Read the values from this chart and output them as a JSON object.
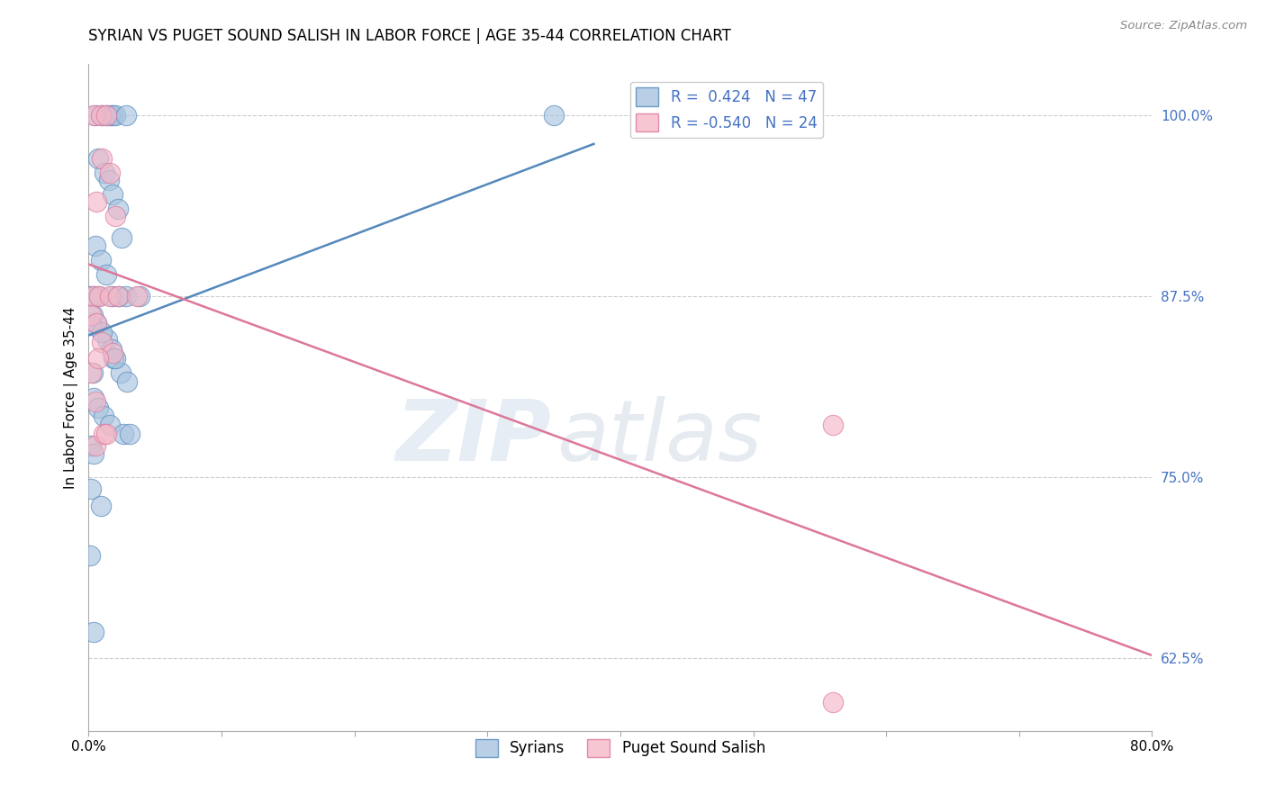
{
  "title": "SYRIAN VS PUGET SOUND SALISH IN LABOR FORCE | AGE 35-44 CORRELATION CHART",
  "source": "Source: ZipAtlas.com",
  "ylabel": "In Labor Force | Age 35-44",
  "watermark": "ZIPatlas",
  "xlim": [
    0.0,
    0.8
  ],
  "ylim": [
    0.575,
    1.035
  ],
  "xticks": [
    0.0,
    0.1,
    0.2,
    0.3,
    0.4,
    0.5,
    0.6,
    0.7,
    0.8
  ],
  "xticklabels": [
    "0.0%",
    "",
    "",
    "",
    "",
    "",
    "",
    "",
    "80.0%"
  ],
  "yticks": [
    0.625,
    0.75,
    0.875,
    1.0
  ],
  "yticklabels": [
    "62.5%",
    "75.0%",
    "87.5%",
    "100.0%"
  ],
  "ytick_color": "#4472c4",
  "blue_R": 0.424,
  "blue_N": 47,
  "pink_R": -0.54,
  "pink_N": 24,
  "blue_color": "#a8c4e0",
  "pink_color": "#f4b8c8",
  "blue_edge_color": "#5588bb",
  "pink_edge_color": "#dd7799",
  "blue_scatter": [
    [
      0.005,
      1.0
    ],
    [
      0.01,
      1.0
    ],
    [
      0.013,
      1.0
    ],
    [
      0.016,
      1.0
    ],
    [
      0.018,
      1.0
    ],
    [
      0.02,
      1.0
    ],
    [
      0.028,
      1.0
    ],
    [
      0.007,
      0.97
    ],
    [
      0.012,
      0.96
    ],
    [
      0.015,
      0.955
    ],
    [
      0.018,
      0.945
    ],
    [
      0.022,
      0.935
    ],
    [
      0.025,
      0.915
    ],
    [
      0.005,
      0.91
    ],
    [
      0.009,
      0.9
    ],
    [
      0.013,
      0.89
    ],
    [
      0.018,
      0.875
    ],
    [
      0.023,
      0.875
    ],
    [
      0.028,
      0.875
    ],
    [
      0.038,
      0.875
    ],
    [
      0.004,
      0.875
    ],
    [
      0.007,
      0.875
    ],
    [
      0.001,
      0.875
    ],
    [
      0.003,
      0.862
    ],
    [
      0.006,
      0.856
    ],
    [
      0.014,
      0.845
    ],
    [
      0.017,
      0.838
    ],
    [
      0.019,
      0.832
    ],
    [
      0.024,
      0.822
    ],
    [
      0.029,
      0.816
    ],
    [
      0.004,
      0.805
    ],
    [
      0.007,
      0.798
    ],
    [
      0.011,
      0.792
    ],
    [
      0.016,
      0.786
    ],
    [
      0.026,
      0.78
    ],
    [
      0.031,
      0.78
    ],
    [
      0.002,
      0.772
    ],
    [
      0.004,
      0.766
    ],
    [
      0.002,
      0.742
    ],
    [
      0.009,
      0.73
    ],
    [
      0.001,
      0.696
    ],
    [
      0.004,
      0.643
    ],
    [
      0.35,
      1.0
    ],
    [
      0.003,
      0.822
    ],
    [
      0.02,
      0.832
    ],
    [
      0.002,
      0.855
    ],
    [
      0.01,
      0.85
    ]
  ],
  "pink_scatter": [
    [
      0.004,
      1.0
    ],
    [
      0.009,
      1.0
    ],
    [
      0.013,
      1.0
    ],
    [
      0.01,
      0.97
    ],
    [
      0.016,
      0.96
    ],
    [
      0.006,
      0.94
    ],
    [
      0.02,
      0.93
    ],
    [
      0.004,
      0.875
    ],
    [
      0.008,
      0.875
    ],
    [
      0.016,
      0.875
    ],
    [
      0.022,
      0.875
    ],
    [
      0.036,
      0.875
    ],
    [
      0.002,
      0.862
    ],
    [
      0.006,
      0.856
    ],
    [
      0.01,
      0.843
    ],
    [
      0.018,
      0.836
    ],
    [
      0.002,
      0.822
    ],
    [
      0.005,
      0.802
    ],
    [
      0.56,
      0.786
    ],
    [
      0.005,
      0.772
    ],
    [
      0.56,
      0.595
    ],
    [
      0.011,
      0.78
    ],
    [
      0.013,
      0.78
    ],
    [
      0.007,
      0.832
    ]
  ],
  "blue_trendline": [
    [
      0.0,
      0.848
    ],
    [
      0.38,
      0.98
    ]
  ],
  "pink_trendline": [
    [
      0.0,
      0.897
    ],
    [
      0.8,
      0.627
    ]
  ],
  "background_color": "#ffffff",
  "grid_color": "#cccccc",
  "legend_labels": [
    "Syrians",
    "Puget Sound Salish"
  ]
}
